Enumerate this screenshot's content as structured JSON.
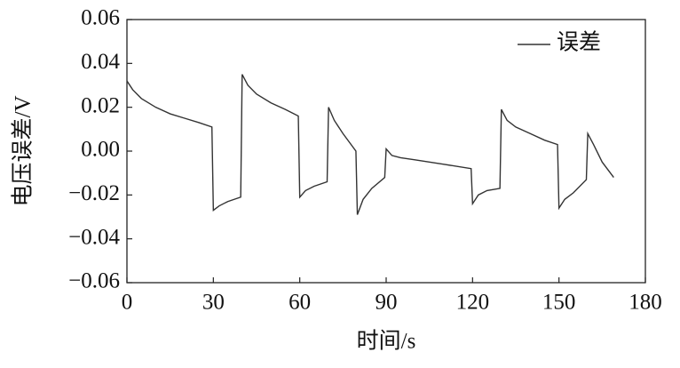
{
  "chart_data": {
    "type": "line",
    "x_label": "时间/s",
    "y_label": "电压误差/V",
    "x": [
      0,
      2,
      5,
      10,
      15,
      20,
      25,
      29.5,
      30,
      32,
      35,
      39.5,
      40,
      42,
      45,
      50,
      55,
      59.5,
      60,
      62,
      65,
      69.5,
      70,
      72,
      75,
      79.5,
      80,
      82,
      85,
      89.5,
      90,
      92,
      95,
      100,
      110,
      119.5,
      120,
      122,
      125,
      129.5,
      130,
      132,
      135,
      140,
      145,
      149.5,
      150,
      152,
      155,
      159.5,
      160,
      162,
      165,
      169
    ],
    "series": [
      {
        "name": "误差",
        "color": "#333333",
        "values": [
          0.032,
          0.028,
          0.024,
          0.02,
          0.017,
          0.015,
          0.013,
          0.011,
          -0.027,
          -0.025,
          -0.023,
          -0.021,
          0.035,
          0.03,
          0.026,
          0.022,
          0.019,
          0.016,
          -0.021,
          -0.018,
          -0.016,
          -0.014,
          0.02,
          0.014,
          0.008,
          0.0,
          -0.029,
          -0.022,
          -0.017,
          -0.012,
          0.001,
          -0.002,
          -0.003,
          -0.004,
          -0.006,
          -0.008,
          -0.024,
          -0.02,
          -0.018,
          -0.017,
          0.019,
          0.014,
          0.011,
          0.008,
          0.005,
          0.003,
          -0.026,
          -0.022,
          -0.019,
          -0.013,
          0.008,
          0.003,
          -0.005,
          -0.012
        ]
      }
    ],
    "xlim": [
      0,
      180
    ],
    "xticks": [
      0,
      30,
      60,
      90,
      120,
      150,
      180
    ],
    "ylim": [
      -0.06,
      0.06
    ],
    "yticks": [
      {
        "value": -0.06,
        "label": "−0.06"
      },
      {
        "value": -0.04,
        "label": "−0.04"
      },
      {
        "value": -0.02,
        "label": "−0.02"
      },
      {
        "value": 0,
        "label": "0.00"
      },
      0.02,
      0.04,
      0.06
    ],
    "legend": "upper right"
  }
}
